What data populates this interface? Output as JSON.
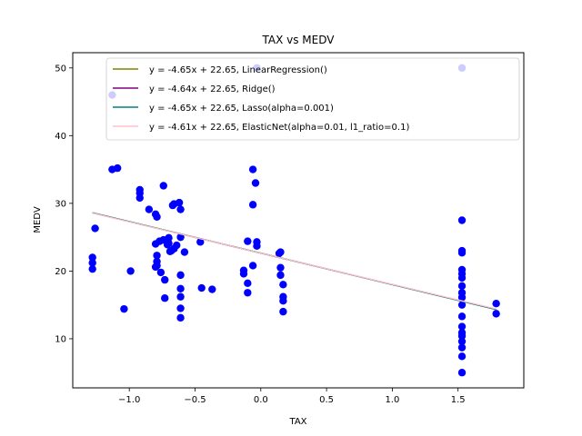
{
  "chart_data": {
    "type": "scatter",
    "title": "TAX vs MEDV",
    "xlabel": "TAX",
    "ylabel": "MEDV",
    "xlim": [
      -1.43,
      2.0
    ],
    "ylim": [
      2.75,
      52.25
    ],
    "xticks": [
      -1.0,
      -0.5,
      0.0,
      0.5,
      1.0,
      1.5
    ],
    "xtick_labels": [
      "−1.0",
      "−0.5",
      "0.0",
      "0.5",
      "1.0",
      "1.5"
    ],
    "yticks": [
      10,
      20,
      30,
      40,
      50
    ],
    "ytick_labels": [
      "10",
      "20",
      "30",
      "40",
      "50"
    ],
    "grid": false,
    "legend_position": "upper-right",
    "scatter": {
      "color": "#0000ff",
      "points": [
        [
          -1.28,
          22.0
        ],
        [
          -1.28,
          21.2
        ],
        [
          -1.28,
          20.3
        ],
        [
          -1.26,
          26.3
        ],
        [
          -1.13,
          46.0
        ],
        [
          -1.13,
          35.0
        ],
        [
          -1.09,
          35.2
        ],
        [
          -1.04,
          14.4
        ],
        [
          -0.99,
          20.0
        ],
        [
          -0.92,
          32.0
        ],
        [
          -0.92,
          31.5
        ],
        [
          -0.92,
          30.8
        ],
        [
          -0.85,
          29.1
        ],
        [
          -0.8,
          28.4
        ],
        [
          -0.79,
          28.0
        ],
        [
          -0.8,
          24.0
        ],
        [
          -0.79,
          22.3
        ],
        [
          -0.79,
          21.4
        ],
        [
          -0.79,
          20.8
        ],
        [
          -0.8,
          20.6
        ],
        [
          -0.77,
          24.4
        ],
        [
          -0.76,
          19.8
        ],
        [
          -0.74,
          32.6
        ],
        [
          -0.74,
          24.6
        ],
        [
          -0.73,
          18.7
        ],
        [
          -0.73,
          16.0
        ],
        [
          -0.71,
          23.9
        ],
        [
          -0.71,
          24.5
        ],
        [
          -0.7,
          24.9
        ],
        [
          -0.7,
          24.1
        ],
        [
          -0.69,
          22.9
        ],
        [
          -0.68,
          23.0
        ],
        [
          -0.67,
          29.7
        ],
        [
          -0.66,
          29.9
        ],
        [
          -0.66,
          23.3
        ],
        [
          -0.64,
          23.8
        ],
        [
          -0.62,
          30.1
        ],
        [
          -0.61,
          29.1
        ],
        [
          -0.61,
          25.0
        ],
        [
          -0.61,
          19.4
        ],
        [
          -0.61,
          17.4
        ],
        [
          -0.61,
          16.2
        ],
        [
          -0.61,
          14.5
        ],
        [
          -0.61,
          13.1
        ],
        [
          -0.58,
          22.8
        ],
        [
          -0.46,
          24.3
        ],
        [
          -0.45,
          17.5
        ],
        [
          -0.37,
          17.3
        ],
        [
          -0.13,
          20.1
        ],
        [
          -0.13,
          19.6
        ],
        [
          -0.1,
          18.2
        ],
        [
          -0.1,
          16.8
        ],
        [
          -0.1,
          24.4
        ],
        [
          -0.06,
          35.0
        ],
        [
          -0.06,
          29.8
        ],
        [
          -0.06,
          20.8
        ],
        [
          -0.04,
          33.0
        ],
        [
          -0.03,
          24.3
        ],
        [
          -0.03,
          23.7
        ],
        [
          -0.03,
          50.0
        ],
        [
          0.14,
          22.6
        ],
        [
          0.15,
          22.8
        ],
        [
          0.15,
          20.5
        ],
        [
          0.15,
          19.4
        ],
        [
          0.17,
          18.0
        ],
        [
          0.17,
          16.2
        ],
        [
          0.17,
          15.6
        ],
        [
          0.17,
          14.0
        ],
        [
          1.53,
          50.0
        ],
        [
          1.53,
          27.5
        ],
        [
          1.53,
          23.0
        ],
        [
          1.53,
          22.7
        ],
        [
          1.53,
          20.2
        ],
        [
          1.53,
          19.6
        ],
        [
          1.53,
          19.0
        ],
        [
          1.53,
          17.8
        ],
        [
          1.53,
          16.8
        ],
        [
          1.53,
          16.1
        ],
        [
          1.53,
          15.0
        ],
        [
          1.53,
          13.3
        ],
        [
          1.53,
          11.8
        ],
        [
          1.53,
          10.9
        ],
        [
          1.53,
          10.4
        ],
        [
          1.53,
          9.6
        ],
        [
          1.53,
          8.7
        ],
        [
          1.53,
          7.4
        ],
        [
          1.53,
          5.0
        ],
        [
          1.79,
          15.2
        ],
        [
          1.79,
          13.7
        ]
      ]
    },
    "series": [
      {
        "name": "y = -4.65x + 22.65, LinearRegression()",
        "slope": -4.65,
        "intercept": 22.65,
        "color": "#808000"
      },
      {
        "name": "y = -4.64x + 22.65, Ridge()",
        "slope": -4.64,
        "intercept": 22.65,
        "color": "#800080"
      },
      {
        "name": "y = -4.65x + 22.65, Lasso(alpha=0.001)",
        "slope": -4.65,
        "intercept": 22.65,
        "color": "#008080"
      },
      {
        "name": "y = -4.61x + 22.65, ElasticNet(alpha=0.01, l1_ratio=0.1)",
        "slope": -4.61,
        "intercept": 22.65,
        "color": "#ffc0cb"
      }
    ],
    "line_x_range": [
      -1.28,
      1.79
    ]
  }
}
